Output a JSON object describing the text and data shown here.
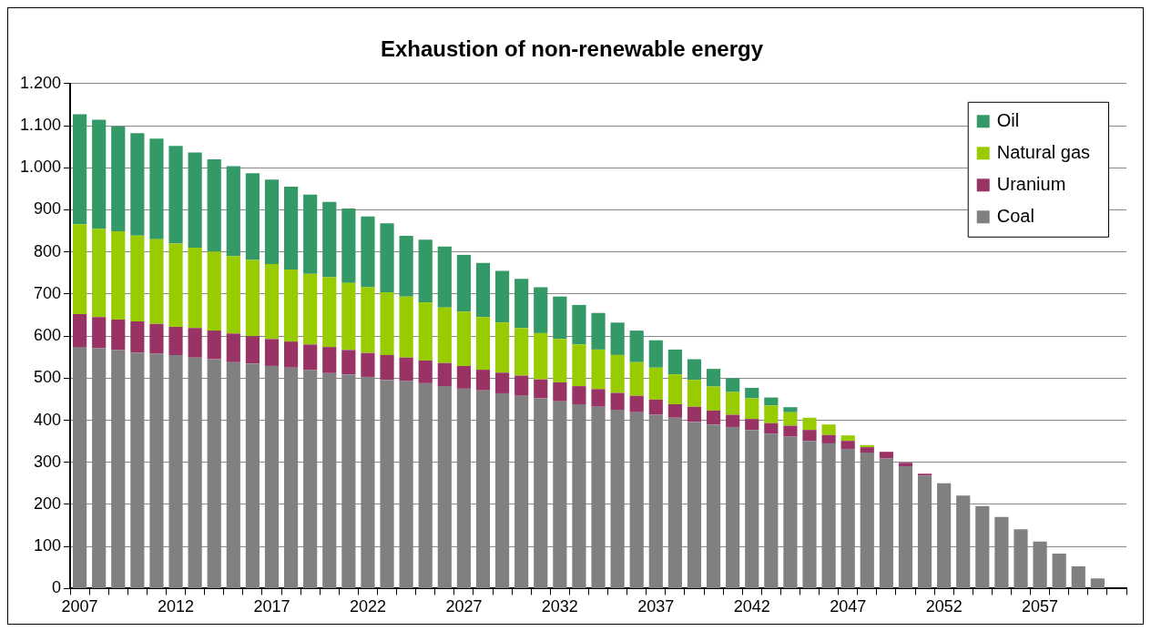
{
  "chart_data": {
    "type": "bar",
    "title": "Exhaustion of non-renewable energy",
    "stacked": true,
    "categories": [
      "2007",
      null,
      null,
      null,
      null,
      "2012",
      null,
      null,
      null,
      null,
      "2017",
      null,
      null,
      null,
      null,
      "2022",
      null,
      null,
      null,
      null,
      "2027",
      null,
      null,
      null,
      null,
      "2032",
      null,
      null,
      null,
      null,
      "2037",
      null,
      null,
      null,
      null,
      "2042",
      null,
      null,
      null,
      null,
      "2047",
      null,
      null,
      null,
      null,
      "2052",
      null,
      null,
      null,
      null,
      "2057",
      null,
      null,
      null,
      null
    ],
    "series": [
      {
        "name": "Coal",
        "color": "#808080",
        "values": [
          574,
          571,
          567,
          561,
          558,
          555,
          549,
          545,
          538,
          535,
          529,
          525,
          519,
          512,
          509,
          503,
          496,
          493,
          488,
          481,
          475,
          471,
          464,
          458,
          452,
          445,
          438,
          432,
          425,
          419,
          413,
          406,
          396,
          390,
          384,
          377,
          368,
          361,
          351,
          345,
          332,
          323,
          309,
          291,
          268,
          250,
          221,
          196,
          170,
          141,
          112,
          83,
          53,
          24,
          null
        ]
      },
      {
        "name": "Uranium",
        "color": "#993366",
        "values": [
          78,
          74,
          72,
          74,
          71,
          67,
          70,
          68,
          68,
          65,
          64,
          62,
          61,
          62,
          58,
          57,
          59,
          56,
          54,
          55,
          54,
          49,
          49,
          48,
          45,
          45,
          43,
          42,
          40,
          39,
          36,
          32,
          36,
          33,
          29,
          26,
          25,
          26,
          26,
          20,
          19,
          13,
          16,
          8,
          5,
          null,
          null,
          null,
          null,
          null,
          null,
          null,
          null,
          null,
          null
        ]
      },
      {
        "name": "Natural gas",
        "color": "#99cc00",
        "values": [
          214,
          210,
          210,
          204,
          201,
          198,
          191,
          188,
          184,
          181,
          178,
          171,
          168,
          166,
          159,
          156,
          149,
          145,
          138,
          132,
          129,
          125,
          119,
          113,
          110,
          103,
          99,
          94,
          90,
          80,
          76,
          71,
          64,
          57,
          54,
          49,
          42,
          32,
          29,
          25,
          13,
          5,
          null,
          null,
          null,
          null,
          null,
          null,
          null,
          null,
          null,
          null,
          null,
          null,
          null
        ]
      },
      {
        "name": "Oil",
        "color": "#339966",
        "values": [
          261,
          259,
          249,
          243,
          239,
          232,
          226,
          219,
          214,
          206,
          201,
          197,
          188,
          179,
          177,
          168,
          164,
          144,
          149,
          145,
          135,
          129,
          123,
          117,
          109,
          101,
          94,
          87,
          77,
          75,
          65,
          59,
          49,
          42,
          33,
          25,
          19,
          12,
          null,
          null,
          null,
          null,
          null,
          null,
          null,
          null,
          null,
          null,
          null,
          null,
          null,
          null,
          null,
          null,
          null
        ]
      }
    ],
    "ylim": [
      0,
      1200
    ],
    "yticks": [
      0,
      100,
      200,
      300,
      400,
      500,
      600,
      700,
      800,
      900,
      {
        "value": 1000,
        "label": "1.000"
      },
      {
        "value": 1100,
        "label": "1.100"
      },
      {
        "value": 1200,
        "label": "1.200"
      }
    ],
    "grid": "y",
    "legend": "top right"
  }
}
